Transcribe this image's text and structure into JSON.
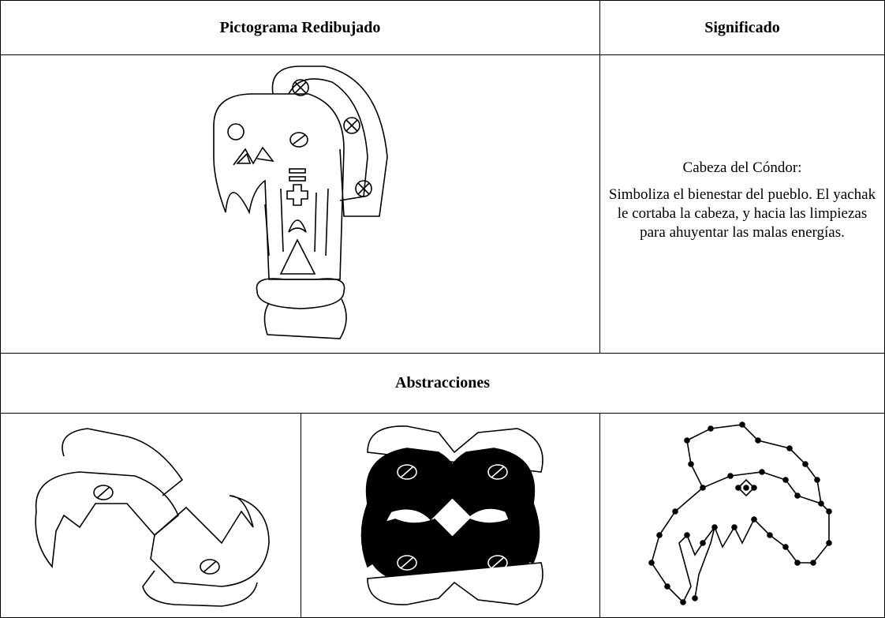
{
  "header": {
    "title": "Pictograma Redibujado",
    "meaning": "Significado"
  },
  "rows": [
    {
      "caption": "Cabeza del Cóndor:",
      "description": "Simboliza el bienestar del pueblo. El yachak le cortaba la cabeza, y hacia las limpiezas para ahuyentar las malas energías."
    }
  ],
  "section": {
    "title": "Abstracciones"
  }
}
